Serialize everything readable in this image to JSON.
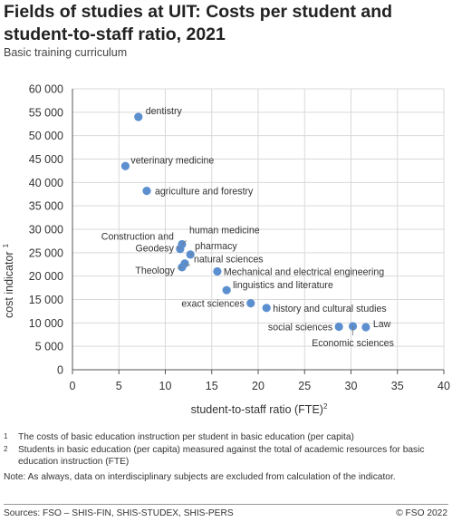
{
  "header": {
    "title": "Fields of studies at UIT: Costs per student and student-to-staff ratio, 2021",
    "subtitle": "Basic training curriculum"
  },
  "chart_data": {
    "type": "scatter",
    "xlabel": "student-to-staff ratio (FTE)",
    "xlabel_sup": "2",
    "ylabel": "cost indicator",
    "ylabel_sup": "1",
    "xlim": [
      0,
      40
    ],
    "ylim": [
      0,
      60000
    ],
    "xticks": [
      0,
      5,
      10,
      15,
      20,
      25,
      30,
      35,
      40
    ],
    "xtick_labels": [
      "0",
      "5",
      "10",
      "15",
      "20",
      "25",
      "30",
      "35",
      "40"
    ],
    "yticks": [
      0,
      5000,
      10000,
      15000,
      20000,
      25000,
      30000,
      35000,
      40000,
      45000,
      50000,
      55000,
      60000
    ],
    "ytick_labels": [
      "0",
      "5 000",
      "10 000",
      "15 000",
      "20 000",
      "25 000",
      "30 000",
      "35 000",
      "40 000",
      "45 000",
      "50 000",
      "55 000",
      "60 000"
    ],
    "grid": true,
    "marker_color": "#5b8fcf",
    "points": [
      {
        "label": "dentistry",
        "x": 7.1,
        "y": 54000
      },
      {
        "label": "veterinary medicine",
        "x": 5.7,
        "y": 43500
      },
      {
        "label": "agriculture and forestry",
        "x": 8.0,
        "y": 38200
      },
      {
        "label": "human medicine",
        "x": 11.8,
        "y": 26800
      },
      {
        "label": "Construction and Geodesy",
        "x": 11.6,
        "y": 25800
      },
      {
        "label": "pharmacy",
        "x": 12.7,
        "y": 24600
      },
      {
        "label": "natural sciences",
        "x": 12.1,
        "y": 22700
      },
      {
        "label": "Theology",
        "x": 11.8,
        "y": 21900
      },
      {
        "label": "Mechanical and electrical engineering",
        "x": 15.6,
        "y": 21000
      },
      {
        "label": "linguistics and literature",
        "x": 16.6,
        "y": 17000
      },
      {
        "label": "exact sciences",
        "x": 19.2,
        "y": 14200
      },
      {
        "label": "history and cultural studies",
        "x": 20.9,
        "y": 13200
      },
      {
        "label": "social sciences",
        "x": 28.7,
        "y": 9200
      },
      {
        "label": "Economic sciences",
        "x": 30.2,
        "y": 9300
      },
      {
        "label": "Law",
        "x": 31.6,
        "y": 9100
      }
    ]
  },
  "footnotes": [
    {
      "num": "1",
      "text": "The costs of basic education instruction per student in basic education (per capita)"
    },
    {
      "num": "2",
      "text": "Students in basic education (per capita) measured against the total of academic resources for basic education instruction (FTE)"
    }
  ],
  "note": "Note: As always, data on interdisciplinary subjects are excluded from calculation of the indicator.",
  "sources": "Sources: FSO – SHIS-FIN, SHIS-STUDEX, SHIS-PERS",
  "copyright": "© FSO 2022"
}
